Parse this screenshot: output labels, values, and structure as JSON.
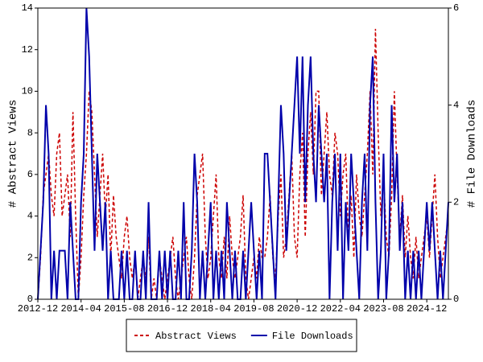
{
  "chart_data": {
    "type": "line",
    "x": [
      "2012-12",
      "2013-01",
      "2013-02",
      "2013-03",
      "2013-04",
      "2013-05",
      "2013-06",
      "2013-07",
      "2013-08",
      "2013-09",
      "2013-10",
      "2013-11",
      "2013-12",
      "2014-01",
      "2014-02",
      "2014-03",
      "2014-04",
      "2014-05",
      "2014-06",
      "2014-07",
      "2014-08",
      "2014-09",
      "2014-10",
      "2014-11",
      "2014-12",
      "2015-01",
      "2015-02",
      "2015-03",
      "2015-04",
      "2015-05",
      "2015-06",
      "2015-07",
      "2015-08",
      "2015-09",
      "2015-10",
      "2015-11",
      "2015-12",
      "2016-01",
      "2016-02",
      "2016-03",
      "2016-04",
      "2016-05",
      "2016-06",
      "2016-07",
      "2016-08",
      "2016-09",
      "2016-10",
      "2016-11",
      "2016-12",
      "2017-01",
      "2017-02",
      "2017-03",
      "2017-04",
      "2017-05",
      "2017-06",
      "2017-07",
      "2017-08",
      "2017-09",
      "2017-10",
      "2017-11",
      "2017-12",
      "2018-01",
      "2018-02",
      "2018-03",
      "2018-04",
      "2018-05",
      "2018-06",
      "2018-07",
      "2018-08",
      "2018-09",
      "2018-10",
      "2018-11",
      "2018-12",
      "2019-01",
      "2019-02",
      "2019-03",
      "2019-04",
      "2019-05",
      "2019-06",
      "2019-07",
      "2019-08",
      "2019-09",
      "2019-10",
      "2019-11",
      "2019-12",
      "2020-01",
      "2020-02",
      "2020-03",
      "2020-04",
      "2020-05",
      "2020-06",
      "2020-07",
      "2020-08",
      "2020-09",
      "2020-10",
      "2020-11",
      "2020-12",
      "2021-01",
      "2021-02",
      "2021-03",
      "2021-04",
      "2021-05",
      "2021-06",
      "2021-07",
      "2021-08",
      "2021-09",
      "2021-10",
      "2021-11",
      "2021-12",
      "2022-01",
      "2022-02",
      "2022-03",
      "2022-04",
      "2022-05",
      "2022-06",
      "2022-07",
      "2022-08",
      "2022-09",
      "2022-10",
      "2022-11",
      "2022-12",
      "2023-01",
      "2023-02",
      "2023-03",
      "2023-04",
      "2023-05",
      "2023-06",
      "2023-07",
      "2023-08",
      "2023-09",
      "2023-10",
      "2023-11",
      "2023-12",
      "2024-01",
      "2024-02",
      "2024-03",
      "2024-04",
      "2024-05",
      "2024-06",
      "2024-07",
      "2024-08",
      "2024-09",
      "2024-10",
      "2024-11",
      "2024-12",
      "2025-01",
      "2025-02",
      "2025-03",
      "2025-04",
      "2025-05",
      "2025-06",
      "2025-07",
      "2025-08"
    ],
    "series": [
      {
        "name": "Abstract Views",
        "color": "#cc0000",
        "dash": true,
        "values": [
          0,
          2,
          5,
          6,
          7,
          5,
          4,
          7,
          8,
          4,
          5,
          6,
          3,
          9,
          4,
          0,
          2,
          5,
          7,
          10,
          9,
          6,
          3,
          5,
          7,
          4,
          6,
          2,
          5,
          3,
          2,
          1,
          3,
          4,
          2,
          1,
          2,
          0,
          1,
          2,
          1,
          3,
          0,
          1,
          0,
          2,
          1,
          0,
          1,
          2,
          3,
          1,
          0,
          1,
          2,
          3,
          1,
          0,
          2,
          5,
          6,
          7,
          3,
          1,
          2,
          4,
          6,
          2,
          1,
          3,
          1,
          4,
          2,
          1,
          2,
          3,
          5,
          1,
          0,
          1,
          2,
          1,
          3,
          2,
          2,
          3,
          5,
          2,
          1,
          4,
          6,
          2,
          3,
          5,
          7,
          3,
          2,
          6,
          8,
          3,
          7,
          9,
          6,
          10,
          10,
          5,
          7,
          9,
          6,
          5,
          8,
          7,
          4,
          6,
          7,
          3,
          5,
          2,
          6,
          4,
          3,
          5,
          7,
          10,
          6,
          13,
          8,
          4,
          6,
          3,
          2,
          5,
          10,
          6,
          3,
          5,
          2,
          4,
          2,
          1,
          3,
          1,
          2,
          3,
          4,
          2,
          4,
          6,
          3,
          1,
          2,
          3,
          4
        ]
      },
      {
        "name": "File Downloads",
        "color": "#0000aa",
        "dash": false,
        "axis": "y2",
        "values": [
          0,
          1,
          2,
          4,
          3,
          0,
          1,
          0,
          1,
          1,
          1,
          0,
          2,
          1,
          0,
          0,
          2,
          3,
          6,
          5,
          3,
          1,
          3,
          2,
          1,
          2,
          0,
          1,
          0,
          0,
          0,
          1,
          0,
          1,
          0,
          0,
          1,
          0,
          0,
          1,
          0,
          2,
          0,
          0,
          0,
          1,
          0,
          1,
          0,
          1,
          0,
          0,
          1,
          0,
          2,
          0,
          0,
          1,
          3,
          2,
          0,
          1,
          0,
          1,
          2,
          0,
          1,
          0,
          1,
          0,
          2,
          1,
          0,
          1,
          0,
          0,
          1,
          0,
          1,
          2,
          1,
          0,
          1,
          0,
          3,
          3,
          2,
          1,
          0,
          2,
          4,
          3,
          1,
          2,
          3,
          4,
          5,
          3,
          5,
          2,
          4,
          5,
          3,
          2,
          4,
          3,
          2,
          3,
          0,
          2,
          3,
          1,
          3,
          0,
          2,
          1,
          3,
          2,
          1,
          0,
          2,
          3,
          1,
          4,
          5,
          2,
          0,
          1,
          3,
          0,
          1,
          4,
          2,
          3,
          1,
          2,
          0,
          1,
          0,
          1,
          0,
          1,
          0,
          1,
          2,
          1,
          2,
          1,
          0,
          1,
          0,
          1,
          2
        ]
      }
    ],
    "xticks": [
      "2012-12",
      "2014-04",
      "2015-08",
      "2016-12",
      "2018-04",
      "2019-08",
      "2020-12",
      "2022-04",
      "2023-08",
      "2024-12"
    ],
    "ylabel": "# Abstract Views",
    "y2label": "# File Downloads",
    "ylim": [
      0,
      14
    ],
    "yticks": [
      0,
      2,
      4,
      6,
      8,
      10,
      12,
      14
    ],
    "y2lim": [
      0,
      6
    ],
    "y2ticks": [
      0,
      2,
      4,
      6
    ],
    "legend": "bottom"
  }
}
